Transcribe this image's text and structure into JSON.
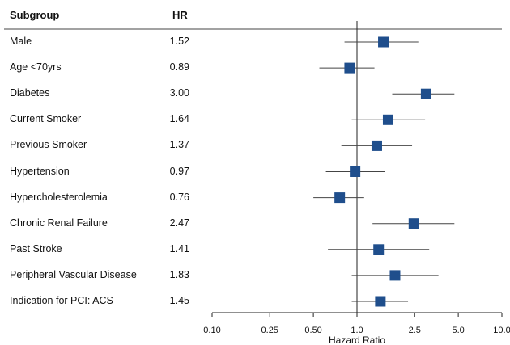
{
  "header": {
    "subgroup_label": "Subgroup",
    "hr_label": "HR"
  },
  "chart_data": {
    "type": "forest",
    "xlabel": "Hazard Ratio",
    "xscale": "log",
    "xlim": [
      0.1,
      10.0
    ],
    "xticks": [
      0.1,
      0.25,
      0.5,
      1.0,
      2.5,
      5.0,
      10.0
    ],
    "xtick_labels": [
      "0.10",
      "0.25",
      "0.50",
      "1.0",
      "2.5",
      "5.0",
      "10.0"
    ],
    "reference_line": 1.0,
    "marker_color": "#1f4e8c",
    "rows": [
      {
        "label": "Male",
        "hr": 1.52,
        "hr_text": "1.52",
        "ci": [
          0.82,
          2.65
        ]
      },
      {
        "label": "Age <70yrs",
        "hr": 0.89,
        "hr_text": "0.89",
        "ci": [
          0.55,
          1.32
        ]
      },
      {
        "label": "Diabetes",
        "hr": 3.0,
        "hr_text": "3.00",
        "ci": [
          1.75,
          4.7
        ]
      },
      {
        "label": "Current Smoker",
        "hr": 1.64,
        "hr_text": "1.64",
        "ci": [
          0.92,
          2.95
        ]
      },
      {
        "label": "Previous Smoker",
        "hr": 1.37,
        "hr_text": "1.37",
        "ci": [
          0.78,
          2.4
        ]
      },
      {
        "label": "Hypertension",
        "hr": 0.97,
        "hr_text": "0.97",
        "ci": [
          0.61,
          1.55
        ]
      },
      {
        "label": "Hypercholesterolemia",
        "hr": 0.76,
        "hr_text": "0.76",
        "ci": [
          0.5,
          1.12
        ]
      },
      {
        "label": "Chronic Renal Failure",
        "hr": 2.47,
        "hr_text": "2.47",
        "ci": [
          1.28,
          4.7
        ]
      },
      {
        "label": "Past Stroke",
        "hr": 1.41,
        "hr_text": "1.41",
        "ci": [
          0.63,
          3.15
        ]
      },
      {
        "label": "Peripheral Vascular Disease",
        "hr": 1.83,
        "hr_text": "1.83",
        "ci": [
          0.92,
          3.65
        ]
      },
      {
        "label": "Indication for PCI: ACS",
        "hr": 1.45,
        "hr_text": "1.45",
        "ci": [
          0.92,
          2.25
        ]
      }
    ]
  }
}
